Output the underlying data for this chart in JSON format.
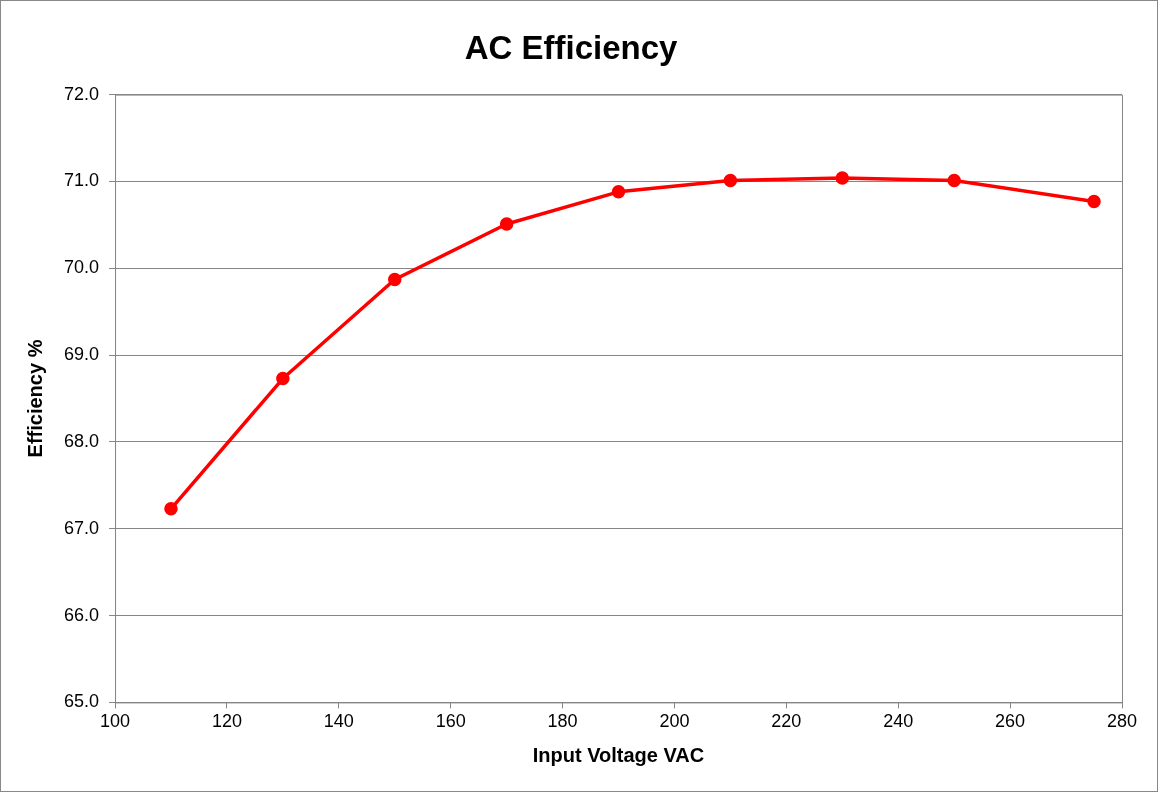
{
  "chart_data": {
    "type": "line",
    "title": "AC Efficiency",
    "xlabel": "Input Voltage VAC",
    "ylabel": "Efficiency %",
    "x": [
      110,
      130,
      150,
      170,
      190,
      210,
      230,
      250,
      275
    ],
    "series": [
      {
        "color": "#ff0000",
        "values": [
          67.23,
          68.73,
          69.87,
          70.51,
          70.88,
          71.01,
          71.04,
          71.01,
          70.77
        ]
      }
    ],
    "xlim": [
      100,
      280
    ],
    "xticks": [
      100,
      120,
      140,
      160,
      180,
      200,
      220,
      240,
      260,
      280
    ],
    "ylim": [
      65,
      72
    ],
    "yticks": [
      {
        "value": 65,
        "label": "65.0"
      },
      {
        "value": 66,
        "label": "66.0"
      },
      {
        "value": 67,
        "label": "67.0"
      },
      {
        "value": 68,
        "label": "68.0"
      },
      {
        "value": 69,
        "label": "69.0"
      },
      {
        "value": 70,
        "label": "70.0"
      },
      {
        "value": 71,
        "label": "71.0"
      },
      {
        "value": 72,
        "label": "72.0"
      }
    ],
    "grid": "y",
    "legend": false,
    "marker": "circle",
    "line_style": "solid"
  }
}
